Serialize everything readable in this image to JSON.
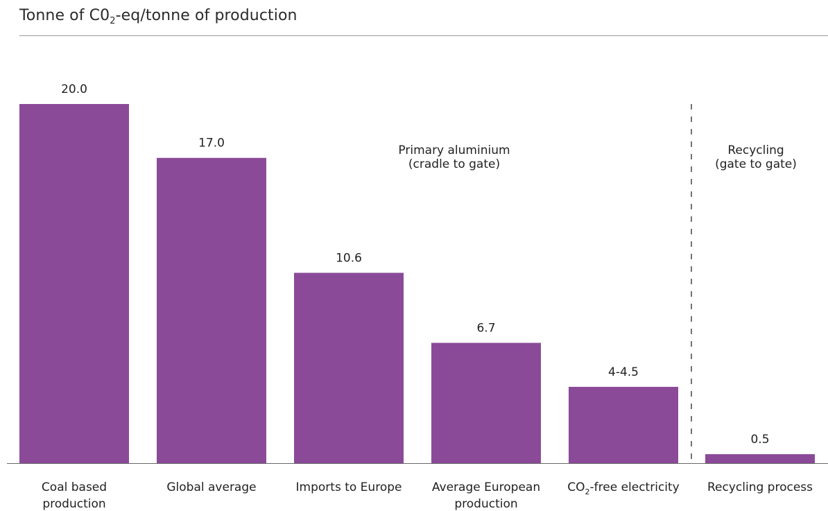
{
  "header": {
    "title_prefix": "Tonne of C0",
    "title_sub": "2",
    "title_suffix": "-eq/tonne of production"
  },
  "colors": {
    "bar": "#8b4a98",
    "baseline": "#666666",
    "divider": "#444444",
    "header_rule": "#9a9a9a"
  },
  "chart_data": {
    "type": "bar",
    "ylabel": "Tonne of C02-eq/tonne of production",
    "ylim": [
      0,
      20
    ],
    "grid": false,
    "legend": "none",
    "categories": [
      {
        "lines": [
          "Coal based",
          "production"
        ]
      },
      {
        "lines": [
          "Global average"
        ]
      },
      {
        "lines": [
          "Imports to Europe"
        ]
      },
      {
        "lines": [
          "Average European",
          "production"
        ]
      },
      {
        "lines": [
          "CO",
          "2",
          "-free electricity"
        ],
        "subscript": true
      },
      {
        "lines": [
          "Recycling process"
        ]
      }
    ],
    "values": [
      20.0,
      17.0,
      10.6,
      6.7,
      4.25,
      0.5
    ],
    "value_labels": [
      "20.0",
      "17.0",
      "10.6",
      "6.7",
      "4-4.5",
      "0.5"
    ],
    "annotations": [
      {
        "lines": [
          "Primary aluminium",
          "(cradle to gate)"
        ],
        "group": "primary"
      },
      {
        "lines": [
          "Recycling",
          "(gate to gate)"
        ],
        "group": "recycling"
      }
    ],
    "divider": {
      "after_category_index": 4,
      "style": "dashed"
    }
  }
}
